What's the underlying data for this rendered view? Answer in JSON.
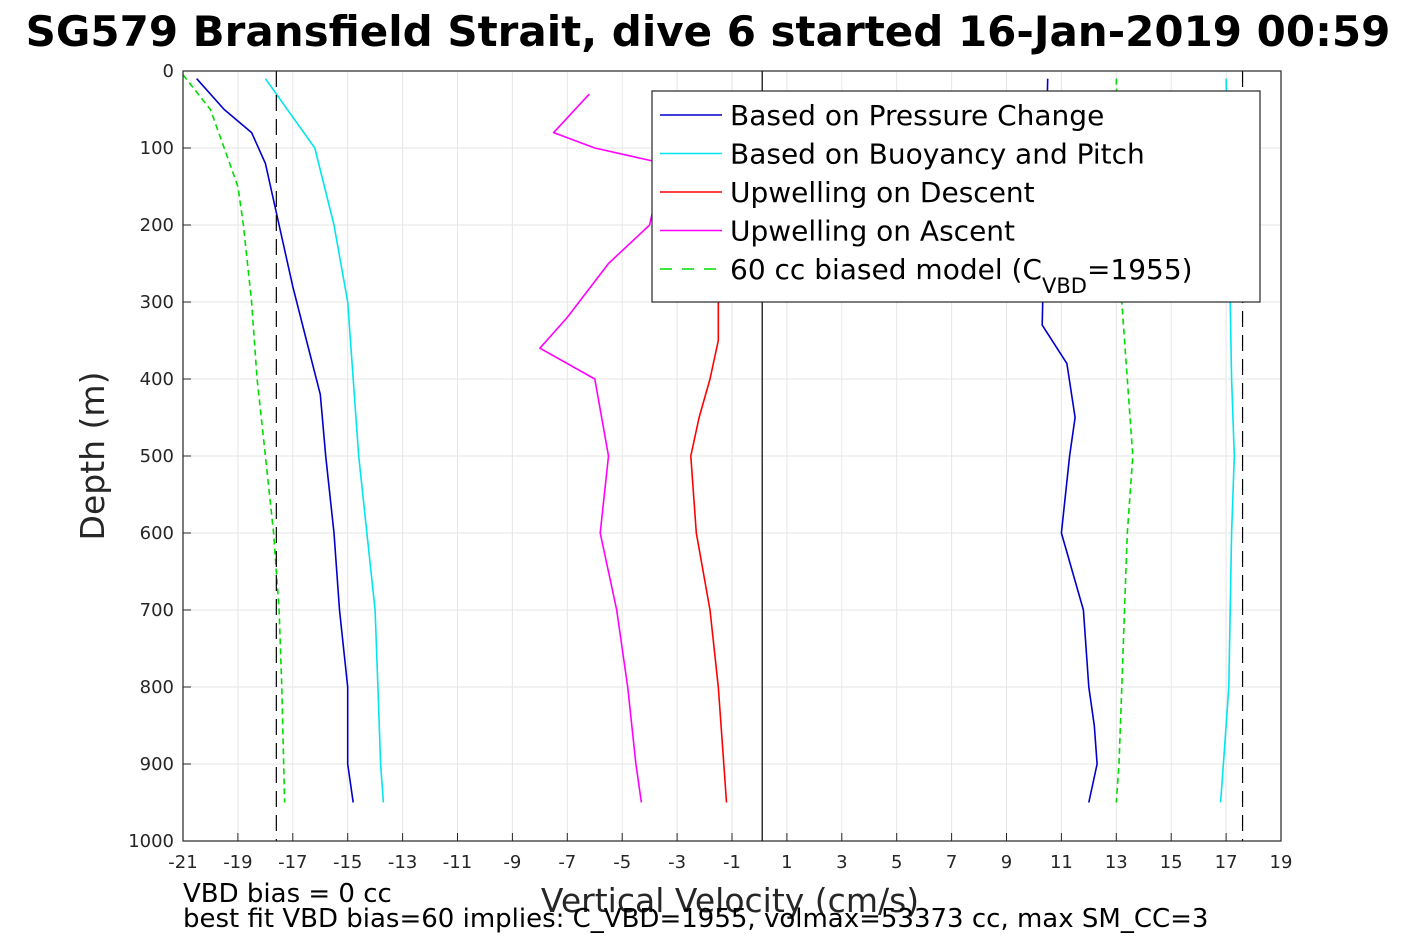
{
  "chart_data": {
    "type": "line",
    "title": "SG579 Bransfield Strait, dive 6 started 16-Jan-2019 00:59",
    "xlabel": "Vertical Velocity (cm/s)",
    "ylabel": "Depth (m)",
    "xlim": [
      -21,
      19
    ],
    "ylim": [
      0,
      1000
    ],
    "y_reversed": true,
    "grid": true,
    "xticks": [
      "-21",
      "-19",
      "-17",
      "-15",
      "-13",
      "-11",
      "-9",
      "-7",
      "-5",
      "-3",
      "-1",
      "1",
      "3",
      "5",
      "7",
      "9",
      "11",
      "13",
      "15",
      "17",
      "19"
    ],
    "yticks": [
      "0",
      "100",
      "200",
      "300",
      "400",
      "500",
      "600",
      "700",
      "800",
      "900",
      "1000"
    ],
    "legend_position": "top-right",
    "reference_lines": [
      {
        "type": "vertical",
        "x": 0.1,
        "style": "solid",
        "color": "#000000"
      },
      {
        "type": "vertical",
        "x": -17.6,
        "style": "dashed",
        "color": "#000000"
      },
      {
        "type": "vertical",
        "x": 17.6,
        "style": "dashed",
        "color": "#000000"
      }
    ],
    "series": [
      {
        "name": "Based on Pressure Change",
        "color": "#0000cc",
        "style": "solid",
        "branches": [
          {
            "phase": "descent",
            "x": [
              -20.5,
              -19.5,
              -18.5,
              -18,
              -17.5,
              -17,
              -16.5,
              -16,
              -15.8,
              -15.5,
              -15.3,
              -15,
              -15,
              -14.8
            ],
            "y": [
              10,
              50,
              80,
              120,
              200,
              280,
              350,
              420,
              500,
              600,
              700,
              800,
              900,
              950
            ]
          },
          {
            "phase": "ascent",
            "x": [
              10.5,
              10.3,
              11.2,
              11.5,
              11.3,
              11,
              11.8,
              12,
              12.2,
              12.3,
              12
            ],
            "y": [
              10,
              330,
              380,
              450,
              500,
              600,
              700,
              800,
              850,
              900,
              950
            ]
          }
        ]
      },
      {
        "name": "Based on Buoyancy and Pitch",
        "color": "#00e5ee",
        "style": "solid",
        "branches": [
          {
            "phase": "descent",
            "x": [
              -18,
              -16.2,
              -15.5,
              -15,
              -14.8,
              -14.6,
              -14.3,
              -14,
              -13.9,
              -13.8,
              -13.7
            ],
            "y": [
              10,
              100,
              200,
              300,
              400,
              500,
              600,
              700,
              800,
              900,
              950
            ]
          },
          {
            "phase": "ascent",
            "x": [
              17,
              17.1,
              17.2,
              17.3,
              17.2,
              17.1,
              16.9,
              16.8
            ],
            "y": [
              10,
              200,
              400,
              500,
              600,
              800,
              900,
              950
            ]
          }
        ]
      },
      {
        "name": "Upwelling on Descent",
        "color": "#ff0000",
        "style": "solid",
        "branches": [
          {
            "phase": "descent",
            "x": [
              -1.5,
              -1.5,
              -1.8,
              -2.2,
              -2.5,
              -2.3,
              -1.8,
              -1.5,
              -1.3,
              -1.2
            ],
            "y": [
              300,
              350,
              400,
              450,
              500,
              600,
              700,
              800,
              900,
              950
            ]
          }
        ]
      },
      {
        "name": "Upwelling on Ascent",
        "color": "#ff00ff",
        "style": "solid",
        "branches": [
          {
            "phase": "ascent",
            "x": [
              -6.2,
              -7.5,
              -6,
              -3.5,
              -4,
              -5.5,
              -7,
              -8,
              -6,
              -5.5,
              -5.8,
              -5.2,
              -4.8,
              -4.5,
              -4.3
            ],
            "y": [
              30,
              80,
              100,
              120,
              200,
              250,
              320,
              360,
              400,
              500,
              600,
              700,
              800,
              900,
              950
            ]
          }
        ]
      },
      {
        "name": "60 cc biased model (C_VBD=1955)",
        "legend_label": "60 cc biased model (C",
        "legend_sub": "VBD",
        "legend_tail": "=1955)",
        "color": "#00dd00",
        "style": "dashed",
        "branches": [
          {
            "phase": "descent",
            "x": [
              -21,
              -20,
              -19.5,
              -19,
              -18.8,
              -18.5,
              -18.3,
              -18,
              -17.7,
              -17.5,
              -17.4,
              -17.3
            ],
            "y": [
              5,
              50,
              100,
              150,
              200,
              300,
              400,
              500,
              600,
              700,
              800,
              950
            ]
          },
          {
            "phase": "ascent",
            "x": [
              13,
              13.2,
              13.4,
              13.6,
              13.4,
              13.3,
              13.2,
              13.1,
              13
            ],
            "y": [
              10,
              300,
              400,
              500,
              600,
              700,
              800,
              900,
              950
            ]
          }
        ]
      }
    ],
    "annotations": [
      "VBD bias = 0 cc",
      "best fit VBD bias=60 implies: C_VBD=1955, volmax=53373 cc, max SM_CC=3"
    ]
  }
}
